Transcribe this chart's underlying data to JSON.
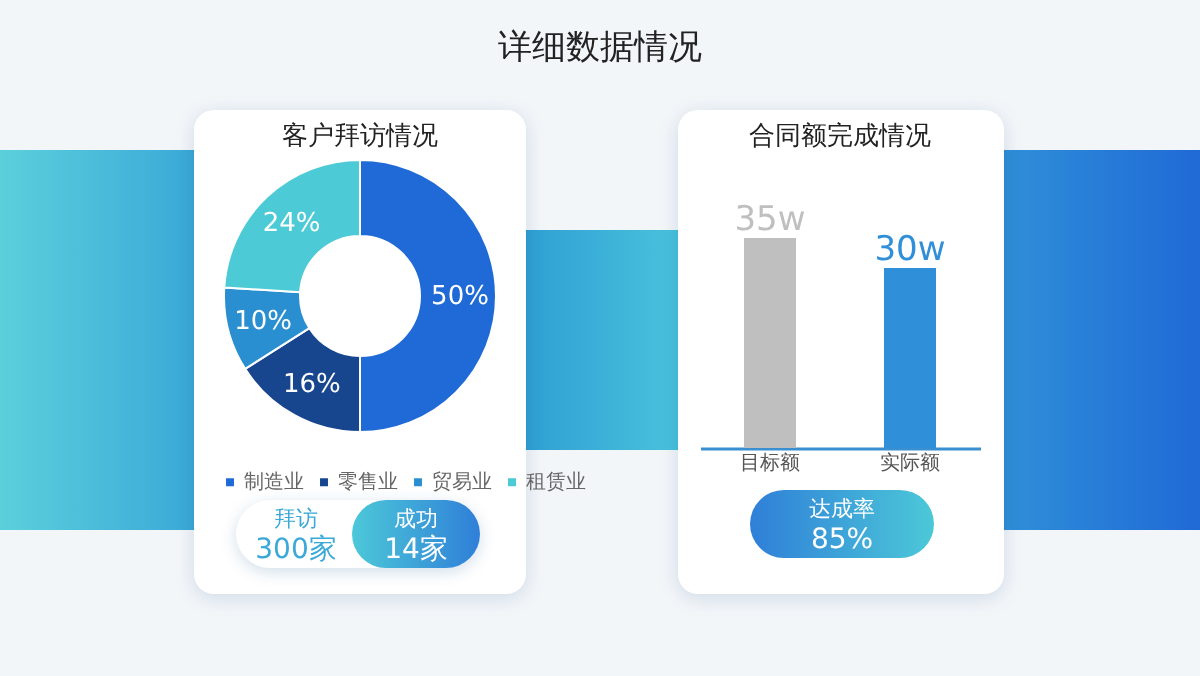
{
  "chart_data": [
    {
      "type": "other",
      "title": "详细数据情况"
    },
    {
      "type": "donut",
      "title": "客户拜访情况",
      "categories": [
        "制造业",
        "零售业",
        "贸易业",
        "租赁业"
      ],
      "values": [
        50,
        16,
        10,
        24
      ],
      "colors": [
        "#1f6ad6",
        "#17468f",
        "#2a8fd0",
        "#4ccad6"
      ],
      "value_labels": [
        "50%",
        "16%",
        "10%",
        "24%"
      ],
      "legend": "bottom",
      "annotations": [
        "拜访",
        "300家",
        "成功",
        "14家"
      ]
    },
    {
      "type": "bar",
      "title": "合同额完成情况",
      "categories": [
        "目标额",
        "实际额"
      ],
      "values": [
        35,
        30
      ],
      "colors": [
        "#bfbfbf",
        "#2f8fd8"
      ],
      "value_labels": [
        "35w",
        "30w"
      ],
      "annotations": [
        "达成率",
        "85%"
      ]
    }
  ]
}
